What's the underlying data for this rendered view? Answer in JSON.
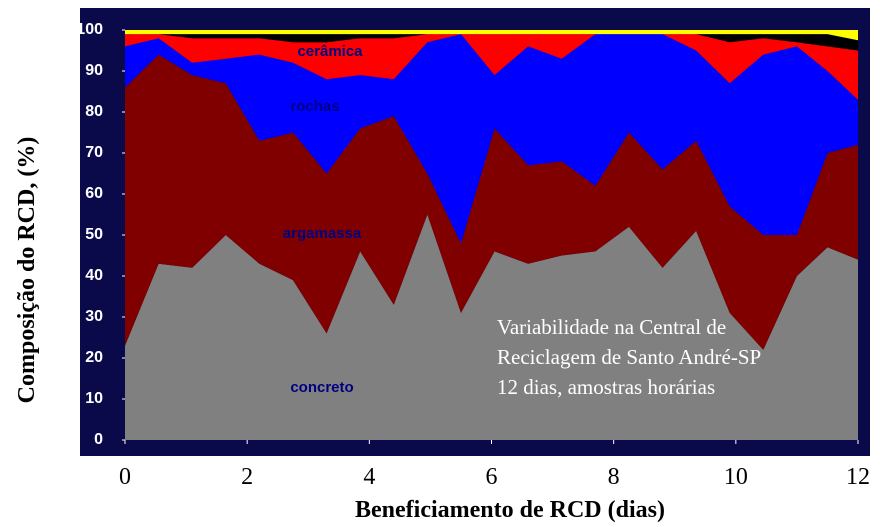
{
  "chart_data": {
    "type": "stacked-area",
    "x": [
      0,
      0.55,
      1.1,
      1.65,
      2.2,
      2.75,
      3.3,
      3.85,
      4.4,
      4.95,
      5.5,
      6.05,
      6.6,
      7.15,
      7.7,
      8.25,
      8.8,
      9.35,
      9.9,
      10.45,
      11,
      11.5,
      12
    ],
    "series": [
      {
        "name": "concreto",
        "color": "#808080",
        "values": [
          23,
          43,
          42,
          50,
          43,
          39,
          26,
          46,
          33,
          55,
          31,
          46,
          43,
          45,
          46,
          52,
          42,
          51,
          31,
          22,
          40,
          47,
          44
        ]
      },
      {
        "name": "argamassa",
        "color": "#800000",
        "values": [
          63,
          51,
          47,
          37,
          30,
          36,
          39,
          30,
          46,
          10,
          17,
          30,
          24,
          23,
          16,
          23,
          24,
          22,
          26,
          28,
          10,
          23,
          28
        ]
      },
      {
        "name": "rochas",
        "color": "#0000ff",
        "values": [
          10,
          4,
          3,
          6,
          21,
          17,
          23,
          13,
          9,
          32,
          51,
          13,
          29,
          25,
          37,
          24,
          33,
          22,
          30,
          44,
          46,
          20,
          11
        ]
      },
      {
        "name": "cerâmica",
        "color": "#ff0000",
        "values": [
          3,
          1,
          6,
          5,
          4,
          5,
          9,
          9,
          10,
          2,
          0,
          10,
          3,
          6,
          0,
          0,
          0,
          4,
          10,
          4,
          1,
          6,
          12
        ]
      },
      {
        "color": "#000000",
        "values": [
          0,
          0,
          1,
          1,
          1,
          2,
          2,
          1,
          1,
          0,
          0,
          0,
          0,
          0,
          0,
          0,
          0,
          0,
          2,
          1,
          2,
          3,
          2.5
        ]
      },
      {
        "color": "#ffff00",
        "values": [
          1,
          1,
          1,
          1,
          1,
          1,
          1,
          1,
          1,
          1,
          1,
          1,
          1,
          1,
          1,
          1,
          1,
          1,
          1,
          1,
          1,
          1,
          2.5
        ]
      }
    ],
    "xlim": [
      0,
      12
    ],
    "xticks": [
      0,
      2,
      4,
      6,
      8,
      10,
      12
    ],
    "ylim": [
      0,
      100
    ],
    "yticks": [
      0,
      10,
      20,
      30,
      40,
      50,
      60,
      70,
      80,
      90,
      100
    ],
    "xlabel": "Beneficiamento de RCD (dias)",
    "ylabel": "Composição do RCD, (%)",
    "annotations": [
      "Variabilidade na Central de",
      "Reciclagem de Santo André-SP",
      "12 dias, amostras horárias"
    ]
  }
}
